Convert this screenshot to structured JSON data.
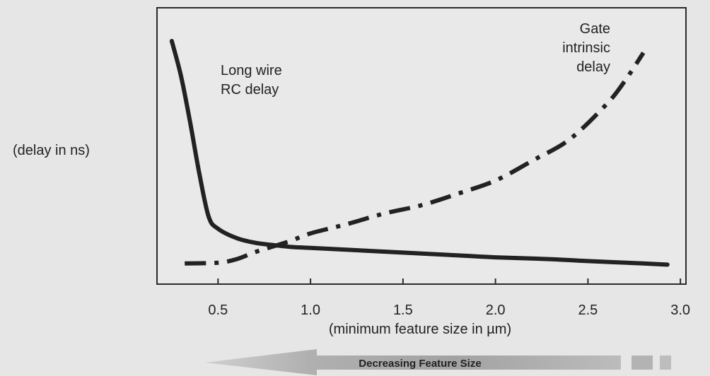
{
  "chart_data": {
    "type": "line",
    "title": "",
    "ylabel": "(delay in ns)",
    "xlabel": "(minimum feature size in µm)",
    "xlim": [
      0.17,
      3.03
    ],
    "ylim": [
      0,
      100
    ],
    "x_ticks": [
      "0.5",
      "1.0",
      "1.5",
      "2.0",
      "2.5",
      "3.0"
    ],
    "x_tick_values": [
      0.5,
      1.0,
      1.5,
      2.0,
      2.5,
      3.0
    ],
    "grid": false,
    "series": [
      {
        "name": "Long wire RC delay",
        "label_lines": [
          "Long wire",
          "RC delay"
        ],
        "line_style": "solid",
        "color": "#222222",
        "x": [
          0.25,
          0.3,
          0.35,
          0.4,
          0.45,
          0.5,
          0.6,
          0.7,
          0.8,
          0.9,
          1.0,
          1.2,
          1.5,
          1.8,
          2.0,
          2.3,
          2.5,
          2.8,
          2.93
        ],
        "y": [
          97,
          82,
          62,
          40,
          22,
          17,
          13,
          11,
          10,
          9.2,
          8.8,
          8,
          6.8,
          5.6,
          4.8,
          4,
          3.2,
          2.2,
          1.7
        ]
      },
      {
        "name": "Gate intrinsic delay",
        "label_lines": [
          "Gate",
          "intrinsic",
          "delay"
        ],
        "line_style": "dash-dot",
        "color": "#222222",
        "x": [
          0.32,
          0.5,
          0.6,
          0.7,
          0.8,
          0.9,
          1.0,
          1.2,
          1.4,
          1.6,
          1.8,
          2.0,
          2.2,
          2.4,
          2.6,
          2.7,
          2.8
        ],
        "y": [
          2.2,
          2.5,
          4,
          7,
          9.5,
          12,
          15,
          19,
          23.5,
          27,
          32,
          37.5,
          46,
          55,
          70,
          80,
          92
        ]
      }
    ],
    "arrow": {
      "label": "Decreasing Feature Size",
      "direction": "left"
    }
  }
}
